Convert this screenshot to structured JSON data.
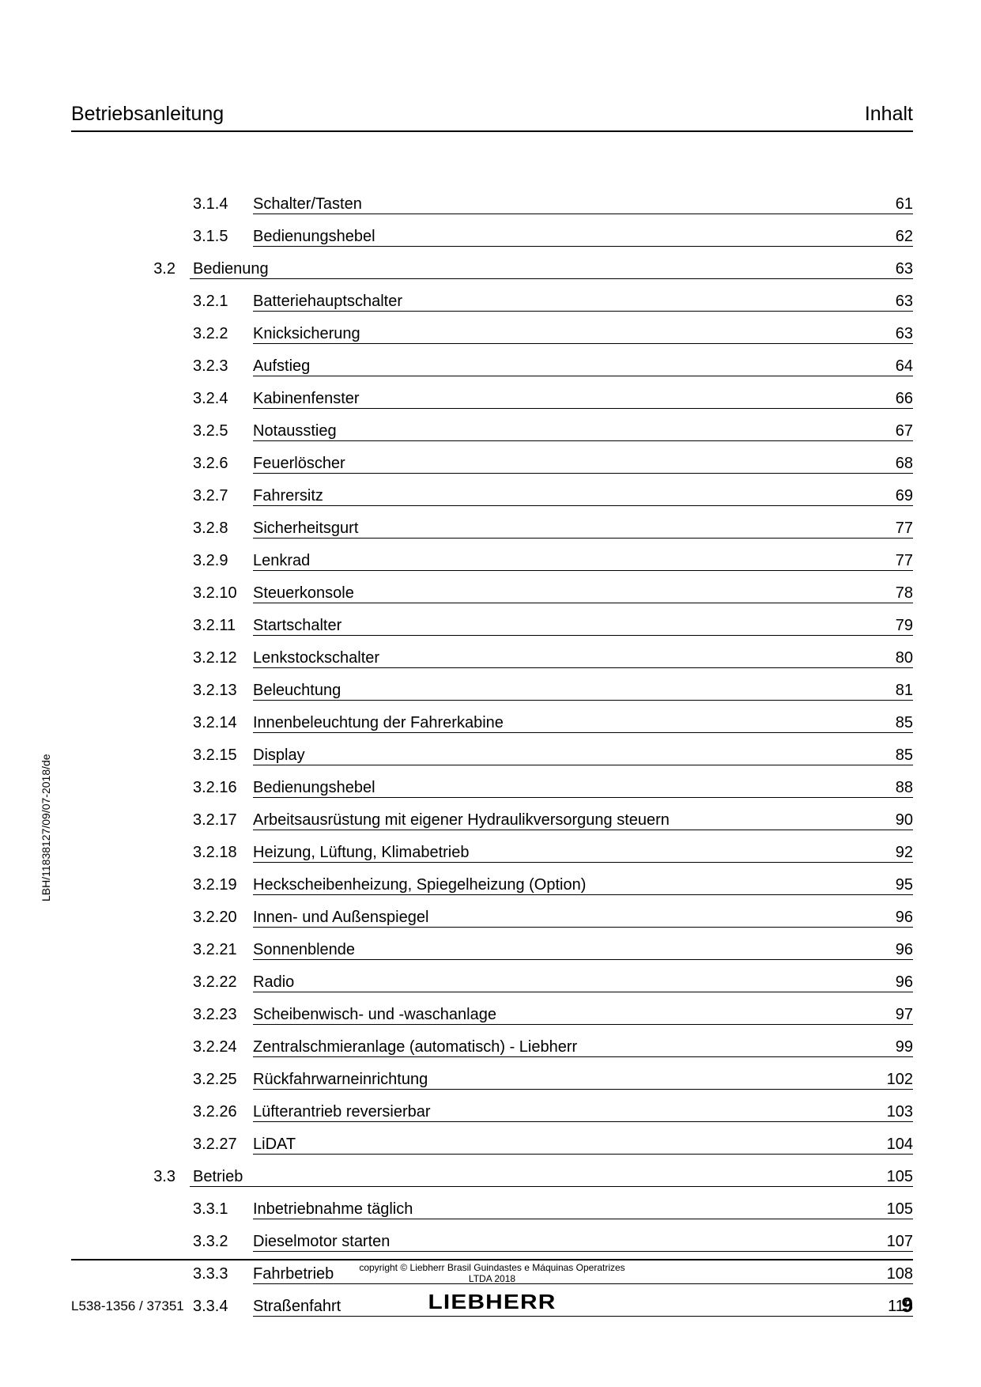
{
  "header": {
    "left": "Betriebsanleitung",
    "right": "Inhalt"
  },
  "toc": [
    {
      "type": "sub",
      "num": "3.1.4",
      "title": "Schalter/Tasten",
      "page": "61"
    },
    {
      "type": "sub",
      "num": "3.1.5",
      "title": "Bedienungshebel",
      "page": "62"
    },
    {
      "type": "sec",
      "sec": "3.2",
      "title": "Bedienung",
      "page": "63"
    },
    {
      "type": "sub",
      "num": "3.2.1",
      "title": "Batteriehauptschalter",
      "page": "63"
    },
    {
      "type": "sub",
      "num": "3.2.2",
      "title": "Knicksicherung",
      "page": "63"
    },
    {
      "type": "sub",
      "num": "3.2.3",
      "title": "Aufstieg",
      "page": "64"
    },
    {
      "type": "sub",
      "num": "3.2.4",
      "title": "Kabinenfenster",
      "page": "66"
    },
    {
      "type": "sub",
      "num": "3.2.5",
      "title": "Notausstieg",
      "page": "67"
    },
    {
      "type": "sub",
      "num": "3.2.6",
      "title": "Feuerlöscher",
      "page": "68"
    },
    {
      "type": "sub",
      "num": "3.2.7",
      "title": "Fahrersitz",
      "page": "69"
    },
    {
      "type": "sub",
      "num": "3.2.8",
      "title": "Sicherheitsgurt",
      "page": "77"
    },
    {
      "type": "sub",
      "num": "3.2.9",
      "title": "Lenkrad",
      "page": "77"
    },
    {
      "type": "sub",
      "num": "3.2.10",
      "title": "Steuerkonsole",
      "page": "78"
    },
    {
      "type": "sub",
      "num": "3.2.11",
      "title": "Startschalter",
      "page": "79"
    },
    {
      "type": "sub",
      "num": "3.2.12",
      "title": "Lenkstockschalter",
      "page": "80"
    },
    {
      "type": "sub",
      "num": "3.2.13",
      "title": "Beleuchtung",
      "page": "81"
    },
    {
      "type": "sub",
      "num": "3.2.14",
      "title": "Innenbeleuchtung der Fahrerkabine",
      "page": "85"
    },
    {
      "type": "sub",
      "num": "3.2.15",
      "title": "Display",
      "page": "85"
    },
    {
      "type": "sub",
      "num": "3.2.16",
      "title": "Bedienungshebel",
      "page": "88"
    },
    {
      "type": "sub",
      "num": "3.2.17",
      "title": "Arbeitsausrüstung mit eigener Hydraulikversorgung steuern",
      "page": "90"
    },
    {
      "type": "sub",
      "num": "3.2.18",
      "title": "Heizung, Lüftung, Klimabetrieb",
      "page": "92"
    },
    {
      "type": "sub",
      "num": "3.2.19",
      "title": "Heckscheibenheizung, Spiegelheizung (Option)",
      "page": "95"
    },
    {
      "type": "sub",
      "num": "3.2.20",
      "title": "Innen- und Außenspiegel",
      "page": "96"
    },
    {
      "type": "sub",
      "num": "3.2.21",
      "title": "Sonnenblende",
      "page": "96"
    },
    {
      "type": "sub",
      "num": "3.2.22",
      "title": "Radio",
      "page": "96"
    },
    {
      "type": "sub",
      "num": "3.2.23",
      "title": "Scheibenwisch- und -waschanlage",
      "page": "97"
    },
    {
      "type": "sub",
      "num": "3.2.24",
      "title": "Zentralschmieranlage (automatisch) - Liebherr",
      "page": "99"
    },
    {
      "type": "sub",
      "num": "3.2.25",
      "title": "Rückfahrwarneinrichtung",
      "page": "102"
    },
    {
      "type": "sub",
      "num": "3.2.26",
      "title": "Lüfterantrieb reversierbar",
      "page": "103"
    },
    {
      "type": "sub",
      "num": "3.2.27",
      "title": "LiDAT",
      "page": "104"
    },
    {
      "type": "sec",
      "sec": "3.3",
      "title": "Betrieb",
      "page": "105"
    },
    {
      "type": "sub",
      "num": "3.3.1",
      "title": "Inbetriebnahme täglich",
      "page": "105"
    },
    {
      "type": "sub",
      "num": "3.3.2",
      "title": "Dieselmotor starten",
      "page": "107"
    },
    {
      "type": "sub",
      "num": "3.3.3",
      "title": "Fahrbetrieb",
      "page": "108"
    },
    {
      "type": "sub",
      "num": "3.3.4",
      "title": "Straßenfahrt",
      "page": "115"
    }
  ],
  "side_text": "LBH/11838127/09/07-2018/de",
  "footer": {
    "copyright_line1": "copyright © Liebherr Brasil Guindastes e Máquinas Operatrizes",
    "copyright_line2": "LTDA 2018",
    "brand": "LIEBHERR",
    "left": "L538-1356 / 37351",
    "page_number": "9"
  }
}
